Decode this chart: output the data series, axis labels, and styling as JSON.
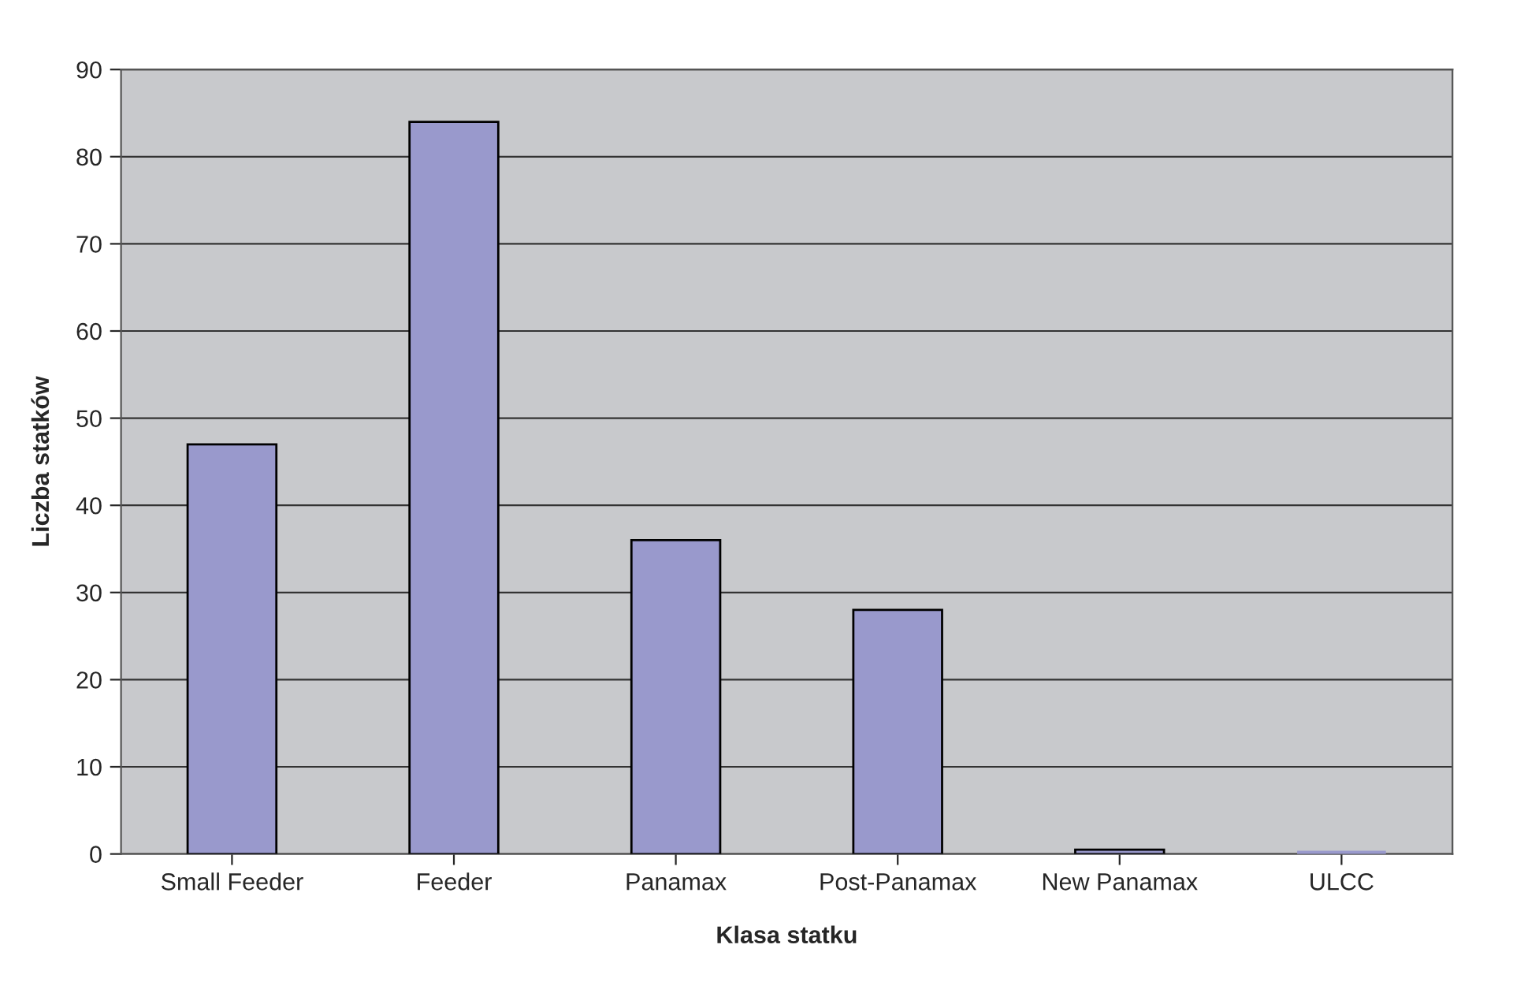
{
  "chart_data": {
    "type": "bar",
    "xlabel": "Klasa statku",
    "ylabel": "Liczba statków",
    "categories": [
      "Small Feeder",
      "Feeder",
      "Panamax",
      "Post-Panamax",
      "New Panamax",
      "ULCC"
    ],
    "values": [
      47,
      84,
      36,
      28,
      0.5,
      0
    ],
    "color": "#9999cc",
    "ylim": [
      0,
      90
    ],
    "yticks": [
      0,
      10,
      20,
      30,
      40,
      50,
      60,
      70,
      80,
      90
    ],
    "grid": "y"
  }
}
